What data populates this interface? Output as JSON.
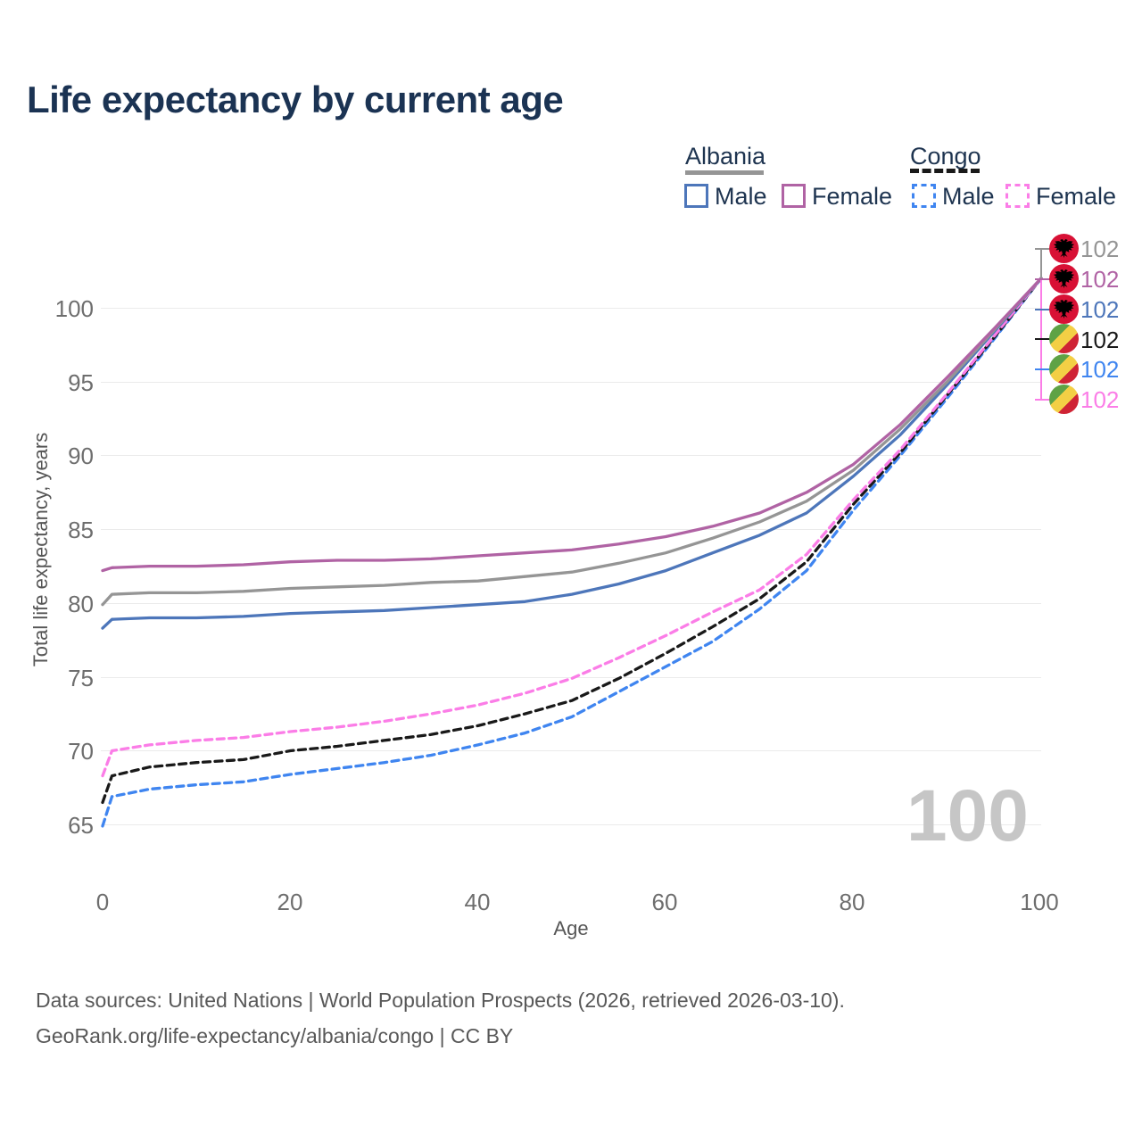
{
  "title": "Life expectancy by current age",
  "legend": {
    "albania": {
      "label": "Albania",
      "male_label": "Male",
      "female_label": "Female"
    },
    "congo": {
      "label": "Congo",
      "male_label": "Male",
      "female_label": "Female"
    }
  },
  "colors": {
    "albania_both": "#959595",
    "albania_female": "#b063a4",
    "albania_male": "#4d76ba",
    "congo_both": "#191919",
    "congo_male": "#3f85f0",
    "congo_female": "#fb7de7",
    "title_navy": "#1b3353",
    "gridline": "#ebebeb",
    "watermark_gray": "#c6c6c6"
  },
  "axes": {
    "y": {
      "title": "Total life expectancy, years",
      "tick_labels": [
        "100",
        "95",
        "90",
        "85",
        "80",
        "75",
        "70",
        "65"
      ],
      "tick_values": [
        100,
        95,
        90,
        85,
        80,
        75,
        70,
        65
      ]
    },
    "x": {
      "title": "Age",
      "tick_labels": [
        "0",
        "20",
        "40",
        "60",
        "80",
        "100"
      ],
      "tick_values": [
        0,
        20,
        40,
        60,
        80,
        100
      ]
    }
  },
  "watermark": "100",
  "endpoints": {
    "items": [
      {
        "flag": "albania",
        "value": "102",
        "series": "albania_both"
      },
      {
        "flag": "albania",
        "value": "102",
        "series": "albania_female"
      },
      {
        "flag": "albania",
        "value": "102",
        "series": "albania_male"
      },
      {
        "flag": "congo",
        "value": "102",
        "series": "congo_both"
      },
      {
        "flag": "congo",
        "value": "102",
        "series": "congo_male"
      },
      {
        "flag": "congo",
        "value": "102",
        "series": "congo_female"
      }
    ]
  },
  "footer": {
    "line1": "Data sources: United Nations | World Population Prospects (2026, retrieved 2026-03-10).",
    "line2": "GeoRank.org/life-expectancy/albania/congo | CC BY"
  },
  "chart_data": {
    "type": "line",
    "title": "Life expectancy by current age",
    "xlabel": "Age",
    "ylabel": "Total life expectancy, years",
    "xlim": [
      0,
      100
    ],
    "ylim": [
      63,
      103
    ],
    "grid": "horizontal-only",
    "legend_position": "top-right",
    "end_age": 100,
    "end_value": 102,
    "x": [
      0,
      1,
      5,
      10,
      15,
      20,
      25,
      30,
      35,
      40,
      45,
      50,
      55,
      60,
      65,
      70,
      75,
      80,
      85,
      90,
      95,
      100
    ],
    "series": [
      {
        "key": "congo_male",
        "name": "Congo Male",
        "country": "Congo",
        "sex": "male",
        "dash": "dashed",
        "values": [
          64.9,
          66.9,
          67.4,
          67.7,
          67.9,
          68.4,
          68.8,
          69.2,
          69.7,
          70.4,
          71.2,
          72.3,
          74.0,
          75.7,
          77.4,
          79.6,
          82.2,
          86.3,
          90.0,
          93.9,
          97.9,
          102
        ]
      },
      {
        "key": "congo_both",
        "name": "Congo Both sexes",
        "country": "Congo",
        "sex": "both",
        "dash": "dashed",
        "values": [
          66.5,
          68.3,
          68.9,
          69.2,
          69.4,
          70.0,
          70.3,
          70.7,
          71.1,
          71.7,
          72.5,
          73.4,
          74.9,
          76.6,
          78.4,
          80.3,
          82.8,
          86.7,
          90.2,
          94.1,
          98.0,
          102
        ]
      },
      {
        "key": "congo_female",
        "name": "Congo Female",
        "country": "Congo",
        "sex": "female",
        "dash": "dashed",
        "values": [
          68.3,
          70.0,
          70.4,
          70.7,
          70.9,
          71.3,
          71.6,
          72.0,
          72.5,
          73.1,
          73.9,
          74.9,
          76.3,
          77.8,
          79.4,
          80.9,
          83.3,
          87.0,
          90.4,
          94.2,
          98.1,
          102
        ]
      },
      {
        "key": "albania_male",
        "name": "Albania Male",
        "country": "Albania",
        "sex": "male",
        "dash": "solid",
        "values": [
          78.3,
          78.9,
          79.0,
          79.0,
          79.1,
          79.3,
          79.4,
          79.5,
          79.7,
          79.9,
          80.1,
          80.6,
          81.3,
          82.2,
          83.4,
          84.6,
          86.1,
          88.6,
          91.4,
          94.8,
          98.4,
          102
        ]
      },
      {
        "key": "albania_both",
        "name": "Albania Both sexes",
        "country": "Albania",
        "sex": "both",
        "dash": "solid",
        "values": [
          79.9,
          80.6,
          80.7,
          80.7,
          80.8,
          81.0,
          81.1,
          81.2,
          81.4,
          81.5,
          81.8,
          82.1,
          82.7,
          83.4,
          84.4,
          85.5,
          86.9,
          89.0,
          91.8,
          95.0,
          98.5,
          102
        ]
      },
      {
        "key": "albania_female",
        "name": "Albania Female",
        "country": "Albania",
        "sex": "female",
        "dash": "solid",
        "values": [
          82.2,
          82.4,
          82.5,
          82.5,
          82.6,
          82.8,
          82.9,
          82.9,
          83.0,
          83.2,
          83.4,
          83.6,
          84.0,
          84.5,
          85.2,
          86.1,
          87.5,
          89.4,
          92.1,
          95.3,
          98.6,
          102
        ]
      }
    ]
  }
}
